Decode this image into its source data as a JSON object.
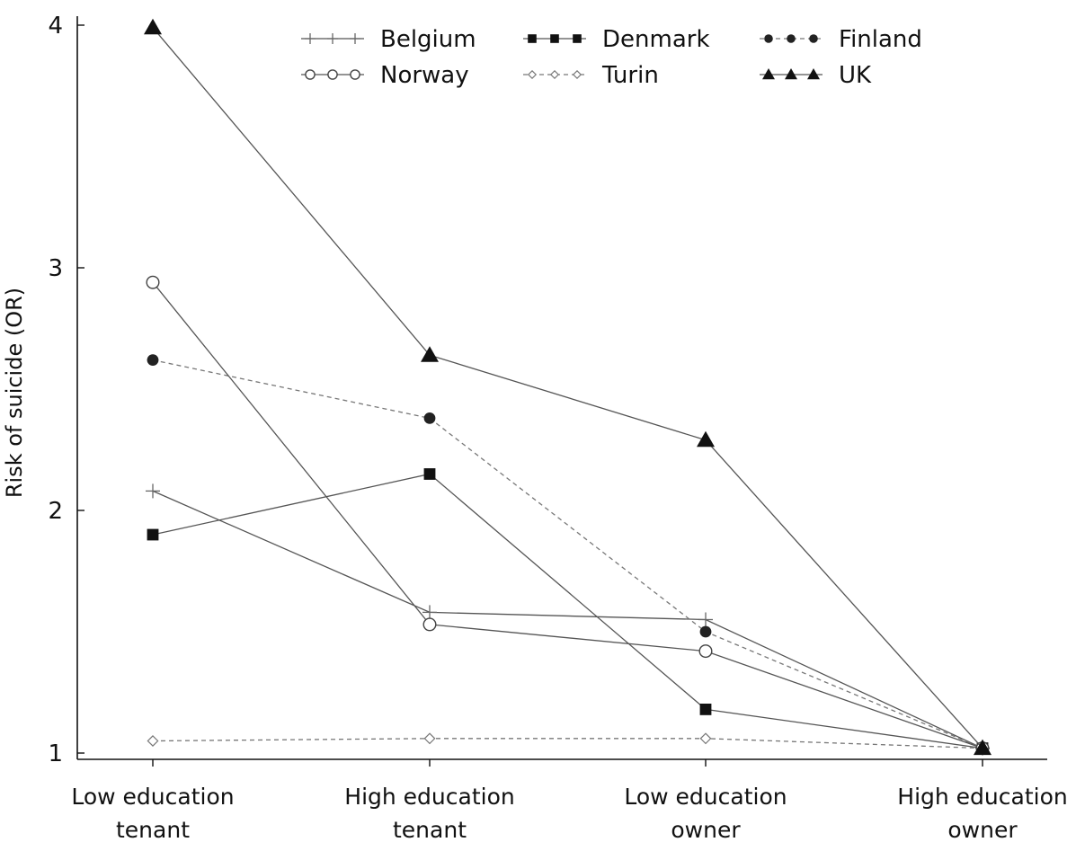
{
  "chart_data": {
    "type": "line",
    "title": "",
    "xlabel": "",
    "ylabel": "Risk of suicide (OR)",
    "ylim": [
      1,
      4
    ],
    "yticks": [
      "1",
      "2",
      "3",
      "4"
    ],
    "categories": [
      [
        "Low education",
        "tenant"
      ],
      [
        "High education",
        "tenant"
      ],
      [
        "Low education",
        "owner"
      ],
      [
        "High education",
        "owner"
      ]
    ],
    "grid": false,
    "legend_position": "top",
    "series": [
      {
        "name": "Belgium",
        "marker": "plus",
        "dashed": false,
        "color": "#555555",
        "values": [
          2.08,
          1.58,
          1.55,
          1.02
        ]
      },
      {
        "name": "Denmark",
        "marker": "square",
        "dashed": false,
        "color": "#111111",
        "values": [
          1.9,
          2.15,
          1.18,
          1.02
        ]
      },
      {
        "name": "Finland",
        "marker": "circle-filled",
        "dashed": true,
        "color": "#333333",
        "values": [
          2.62,
          2.38,
          1.5,
          1.02
        ]
      },
      {
        "name": "Norway",
        "marker": "circle-open",
        "dashed": false,
        "color": "#555555",
        "values": [
          2.94,
          1.53,
          1.42,
          1.02
        ]
      },
      {
        "name": "Turin",
        "marker": "diamond-open",
        "dashed": true,
        "color": "#888888",
        "values": [
          1.05,
          1.06,
          1.06,
          1.02
        ]
      },
      {
        "name": "UK",
        "marker": "triangle",
        "dashed": false,
        "color": "#111111",
        "values": [
          3.99,
          2.64,
          2.29,
          1.02
        ]
      }
    ]
  }
}
